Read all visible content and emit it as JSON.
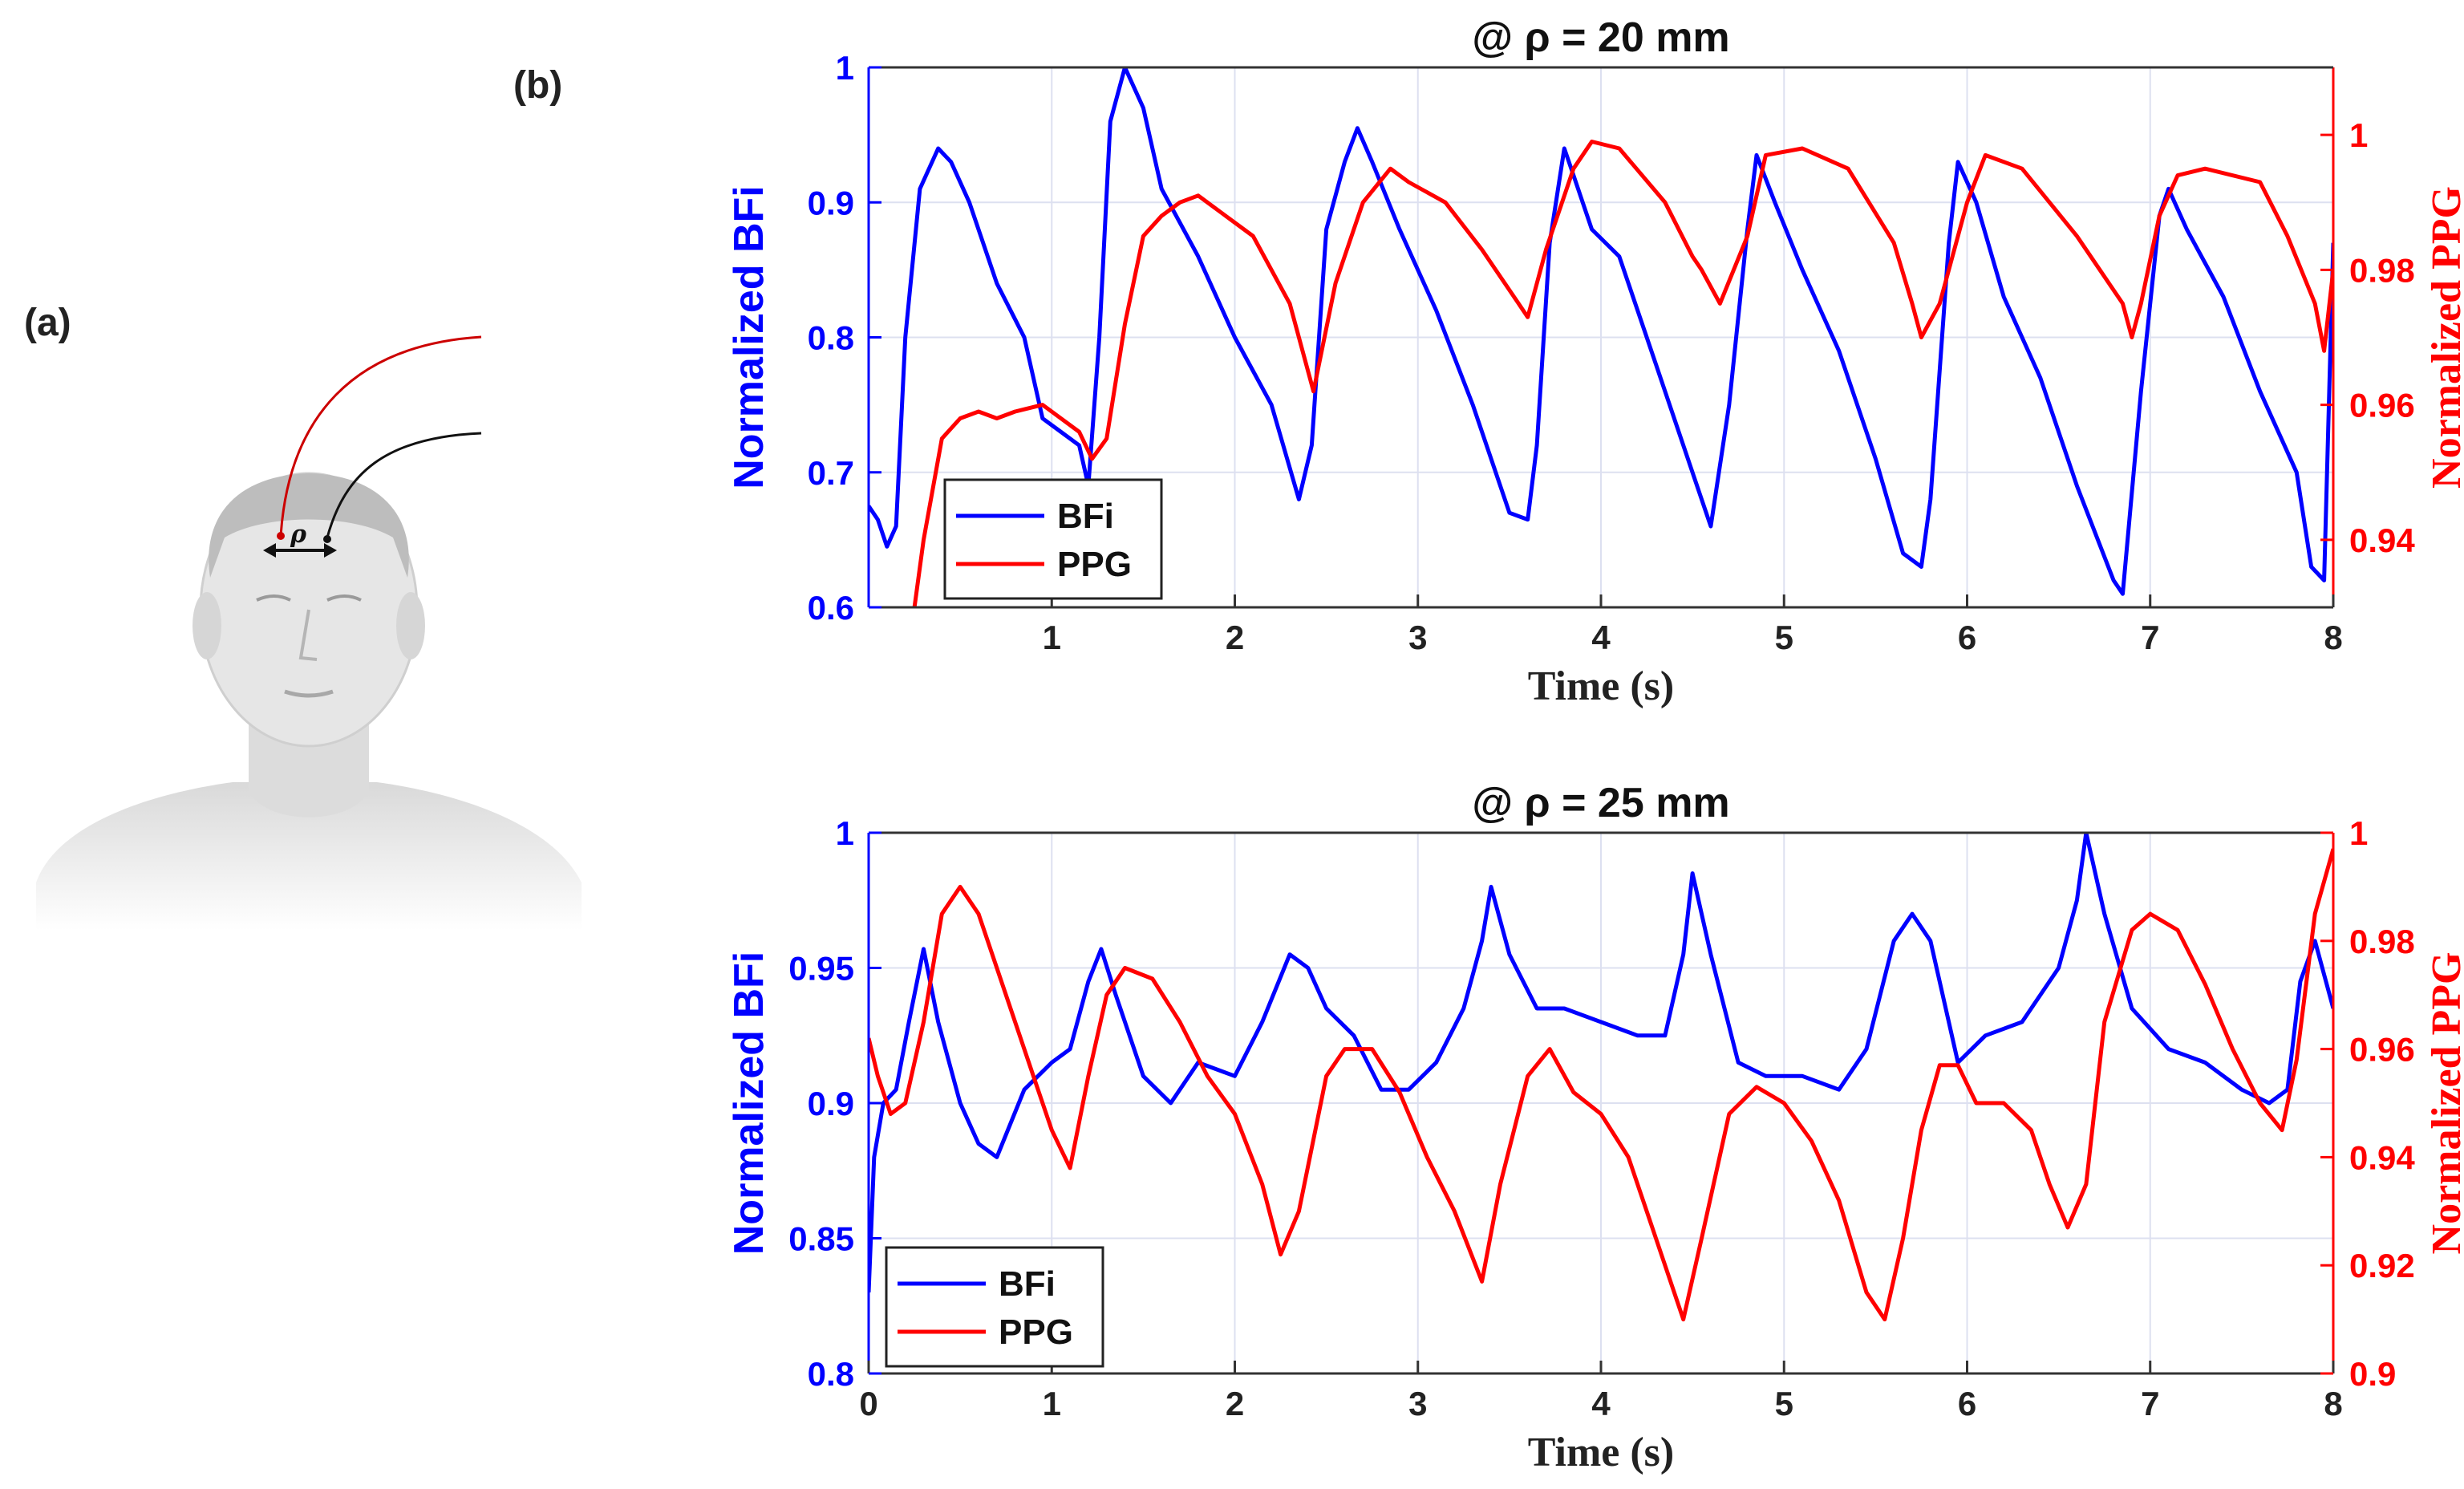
{
  "panel_a_label": "(a)",
  "panel_b_label": "(b)",
  "illustration": {
    "rho_label": "ρ"
  },
  "colors": {
    "bfi": "#0000ff",
    "ppg": "#ff0000",
    "grid": "#dde0f0"
  },
  "chart_data": [
    {
      "type": "line",
      "title": "@ ρ = 20 mm",
      "xlabel": "Time (s)",
      "ylabel_left": "Normalized BFi",
      "ylabel_right": "Normalized PPG",
      "xlim": [
        0,
        8
      ],
      "ylim_left": [
        0.6,
        1.0
      ],
      "ylim_right": [
        0.93,
        1.01
      ],
      "xticks": [
        "1",
        "2",
        "3",
        "4",
        "5",
        "6",
        "7",
        "8"
      ],
      "xtick_values": [
        1,
        2,
        3,
        4,
        5,
        6,
        7,
        8
      ],
      "yticks_left": [
        "0.6",
        "0.7",
        "0.8",
        "0.9",
        "1"
      ],
      "ytick_values_left": [
        0.6,
        0.7,
        0.8,
        0.9,
        1.0
      ],
      "yticks_right": [
        "0.94",
        "0.96",
        "0.98",
        "1"
      ],
      "ytick_values_right": [
        0.94,
        0.96,
        0.98,
        1.0
      ],
      "legend": [
        "BFi",
        "PPG"
      ],
      "legend_position": "bottom-left",
      "series": [
        {
          "name": "BFi",
          "axis": "left",
          "x": [
            0,
            0.05,
            0.1,
            0.15,
            0.2,
            0.28,
            0.38,
            0.45,
            0.55,
            0.7,
            0.85,
            0.95,
            1.05,
            1.15,
            1.2,
            1.26,
            1.32,
            1.4,
            1.5,
            1.6,
            1.8,
            2.0,
            2.2,
            2.35,
            2.42,
            2.5,
            2.6,
            2.67,
            2.75,
            2.9,
            3.1,
            3.3,
            3.5,
            3.6,
            3.65,
            3.72,
            3.8,
            3.85,
            3.95,
            4.1,
            4.3,
            4.5,
            4.6,
            4.7,
            4.8,
            4.85,
            4.95,
            5.1,
            5.3,
            5.5,
            5.65,
            5.75,
            5.8,
            5.9,
            5.95,
            6.05,
            6.2,
            6.4,
            6.6,
            6.8,
            6.85,
            6.95,
            7.05,
            7.1,
            7.2,
            7.4,
            7.6,
            7.8,
            7.88,
            7.95,
            8.0
          ],
          "y": [
            0.675,
            0.665,
            0.645,
            0.66,
            0.8,
            0.91,
            0.94,
            0.93,
            0.9,
            0.84,
            0.8,
            0.74,
            0.73,
            0.72,
            0.69,
            0.8,
            0.96,
            1.0,
            0.97,
            0.91,
            0.86,
            0.8,
            0.75,
            0.68,
            0.72,
            0.88,
            0.93,
            0.955,
            0.93,
            0.88,
            0.82,
            0.75,
            0.67,
            0.665,
            0.72,
            0.87,
            0.94,
            0.92,
            0.88,
            0.86,
            0.78,
            0.7,
            0.66,
            0.75,
            0.88,
            0.935,
            0.9,
            0.85,
            0.79,
            0.71,
            0.64,
            0.63,
            0.68,
            0.87,
            0.93,
            0.9,
            0.83,
            0.77,
            0.69,
            0.62,
            0.61,
            0.76,
            0.89,
            0.91,
            0.88,
            0.83,
            0.76,
            0.7,
            0.63,
            0.62,
            0.87
          ]
        },
        {
          "name": "PPG",
          "axis": "right",
          "x": [
            0.25,
            0.3,
            0.4,
            0.5,
            0.6,
            0.7,
            0.8,
            0.95,
            1.05,
            1.15,
            1.22,
            1.3,
            1.4,
            1.5,
            1.6,
            1.7,
            1.8,
            1.95,
            2.1,
            2.3,
            2.43,
            2.55,
            2.7,
            2.85,
            2.95,
            3.15,
            3.35,
            3.55,
            3.6,
            3.7,
            3.85,
            3.95,
            4.1,
            4.35,
            4.5,
            4.55,
            4.65,
            4.8,
            4.9,
            5.1,
            5.35,
            5.6,
            5.7,
            5.75,
            5.85,
            6.0,
            6.1,
            6.3,
            6.6,
            6.85,
            6.9,
            6.95,
            7.05,
            7.15,
            7.3,
            7.6,
            7.75,
            7.9,
            7.95,
            8.0
          ],
          "y": [
            0.93,
            0.94,
            0.955,
            0.958,
            0.959,
            0.958,
            0.959,
            0.96,
            0.958,
            0.956,
            0.952,
            0.955,
            0.972,
            0.985,
            0.988,
            0.99,
            0.991,
            0.988,
            0.985,
            0.975,
            0.962,
            0.978,
            0.99,
            0.995,
            0.993,
            0.99,
            0.983,
            0.975,
            0.973,
            0.983,
            0.995,
            0.999,
            0.998,
            0.99,
            0.982,
            0.98,
            0.975,
            0.985,
            0.997,
            0.998,
            0.995,
            0.984,
            0.975,
            0.97,
            0.975,
            0.99,
            0.997,
            0.995,
            0.985,
            0.975,
            0.97,
            0.975,
            0.988,
            0.994,
            0.995,
            0.993,
            0.985,
            0.975,
            0.968,
            0.98
          ]
        }
      ]
    },
    {
      "type": "line",
      "title": "@ ρ = 25 mm",
      "xlabel": "Time (s)",
      "ylabel_left": "Normalized BFi",
      "ylabel_right": "Normalized PPG",
      "xlim": [
        0,
        8
      ],
      "ylim_left": [
        0.8,
        1.0
      ],
      "ylim_right": [
        0.9,
        1.0
      ],
      "xticks": [
        "0",
        "1",
        "2",
        "3",
        "4",
        "5",
        "6",
        "7",
        "8"
      ],
      "xtick_values": [
        0,
        1,
        2,
        3,
        4,
        5,
        6,
        7,
        8
      ],
      "yticks_left": [
        "0.8",
        "0.85",
        "0.9",
        "0.95",
        "1"
      ],
      "ytick_values_left": [
        0.8,
        0.85,
        0.9,
        0.95,
        1.0
      ],
      "yticks_right": [
        "0.9",
        "0.92",
        "0.94",
        "0.96",
        "0.98",
        "1"
      ],
      "ytick_values_right": [
        0.9,
        0.92,
        0.94,
        0.96,
        0.98,
        1.0
      ],
      "legend": [
        "BFi",
        "PPG"
      ],
      "legend_position": "bottom-left",
      "series": [
        {
          "name": "BFi",
          "axis": "left",
          "x": [
            0,
            0.03,
            0.08,
            0.15,
            0.22,
            0.3,
            0.38,
            0.5,
            0.6,
            0.7,
            0.85,
            1.0,
            1.1,
            1.2,
            1.27,
            1.35,
            1.5,
            1.65,
            1.8,
            2.0,
            2.15,
            2.3,
            2.4,
            2.5,
            2.65,
            2.8,
            2.95,
            3.1,
            3.25,
            3.35,
            3.4,
            3.5,
            3.65,
            3.8,
            4.0,
            4.2,
            4.35,
            4.45,
            4.5,
            4.6,
            4.75,
            4.9,
            5.1,
            5.3,
            5.45,
            5.6,
            5.7,
            5.8,
            5.95,
            6.1,
            6.3,
            6.5,
            6.6,
            6.65,
            6.75,
            6.9,
            7.1,
            7.3,
            7.5,
            7.65,
            7.75,
            7.82,
            7.9,
            8.0
          ],
          "y": [
            0.83,
            0.88,
            0.9,
            0.905,
            0.93,
            0.957,
            0.93,
            0.9,
            0.885,
            0.88,
            0.905,
            0.915,
            0.92,
            0.945,
            0.957,
            0.94,
            0.91,
            0.9,
            0.915,
            0.91,
            0.93,
            0.955,
            0.95,
            0.935,
            0.925,
            0.905,
            0.905,
            0.915,
            0.935,
            0.96,
            0.98,
            0.955,
            0.935,
            0.935,
            0.93,
            0.925,
            0.925,
            0.955,
            0.985,
            0.955,
            0.915,
            0.91,
            0.91,
            0.905,
            0.92,
            0.96,
            0.97,
            0.96,
            0.915,
            0.925,
            0.93,
            0.95,
            0.975,
            1.0,
            0.97,
            0.935,
            0.92,
            0.915,
            0.905,
            0.9,
            0.905,
            0.945,
            0.96,
            0.935
          ]
        },
        {
          "name": "PPG",
          "axis": "right",
          "x": [
            0,
            0.05,
            0.12,
            0.2,
            0.3,
            0.4,
            0.5,
            0.6,
            0.75,
            0.9,
            1.0,
            1.1,
            1.2,
            1.3,
            1.4,
            1.55,
            1.7,
            1.85,
            2.0,
            2.15,
            2.25,
            2.35,
            2.5,
            2.6,
            2.75,
            2.9,
            3.05,
            3.2,
            3.35,
            3.45,
            3.6,
            3.72,
            3.85,
            4.0,
            4.15,
            4.3,
            4.45,
            4.55,
            4.7,
            4.85,
            5.0,
            5.15,
            5.3,
            5.45,
            5.55,
            5.65,
            5.75,
            5.85,
            5.95,
            6.05,
            6.2,
            6.35,
            6.45,
            6.55,
            6.65,
            6.75,
            6.9,
            7.0,
            7.15,
            7.3,
            7.45,
            7.6,
            7.72,
            7.8,
            7.9,
            8.0
          ],
          "y": [
            0.962,
            0.955,
            0.948,
            0.95,
            0.965,
            0.985,
            0.99,
            0.985,
            0.97,
            0.955,
            0.945,
            0.938,
            0.955,
            0.97,
            0.975,
            0.973,
            0.965,
            0.955,
            0.948,
            0.935,
            0.922,
            0.93,
            0.955,
            0.96,
            0.96,
            0.952,
            0.94,
            0.93,
            0.917,
            0.935,
            0.955,
            0.96,
            0.952,
            0.948,
            0.94,
            0.925,
            0.91,
            0.925,
            0.948,
            0.953,
            0.95,
            0.943,
            0.932,
            0.915,
            0.91,
            0.925,
            0.945,
            0.957,
            0.957,
            0.95,
            0.95,
            0.945,
            0.935,
            0.927,
            0.935,
            0.965,
            0.982,
            0.985,
            0.982,
            0.972,
            0.96,
            0.95,
            0.945,
            0.958,
            0.985,
            0.997
          ]
        }
      ]
    }
  ]
}
